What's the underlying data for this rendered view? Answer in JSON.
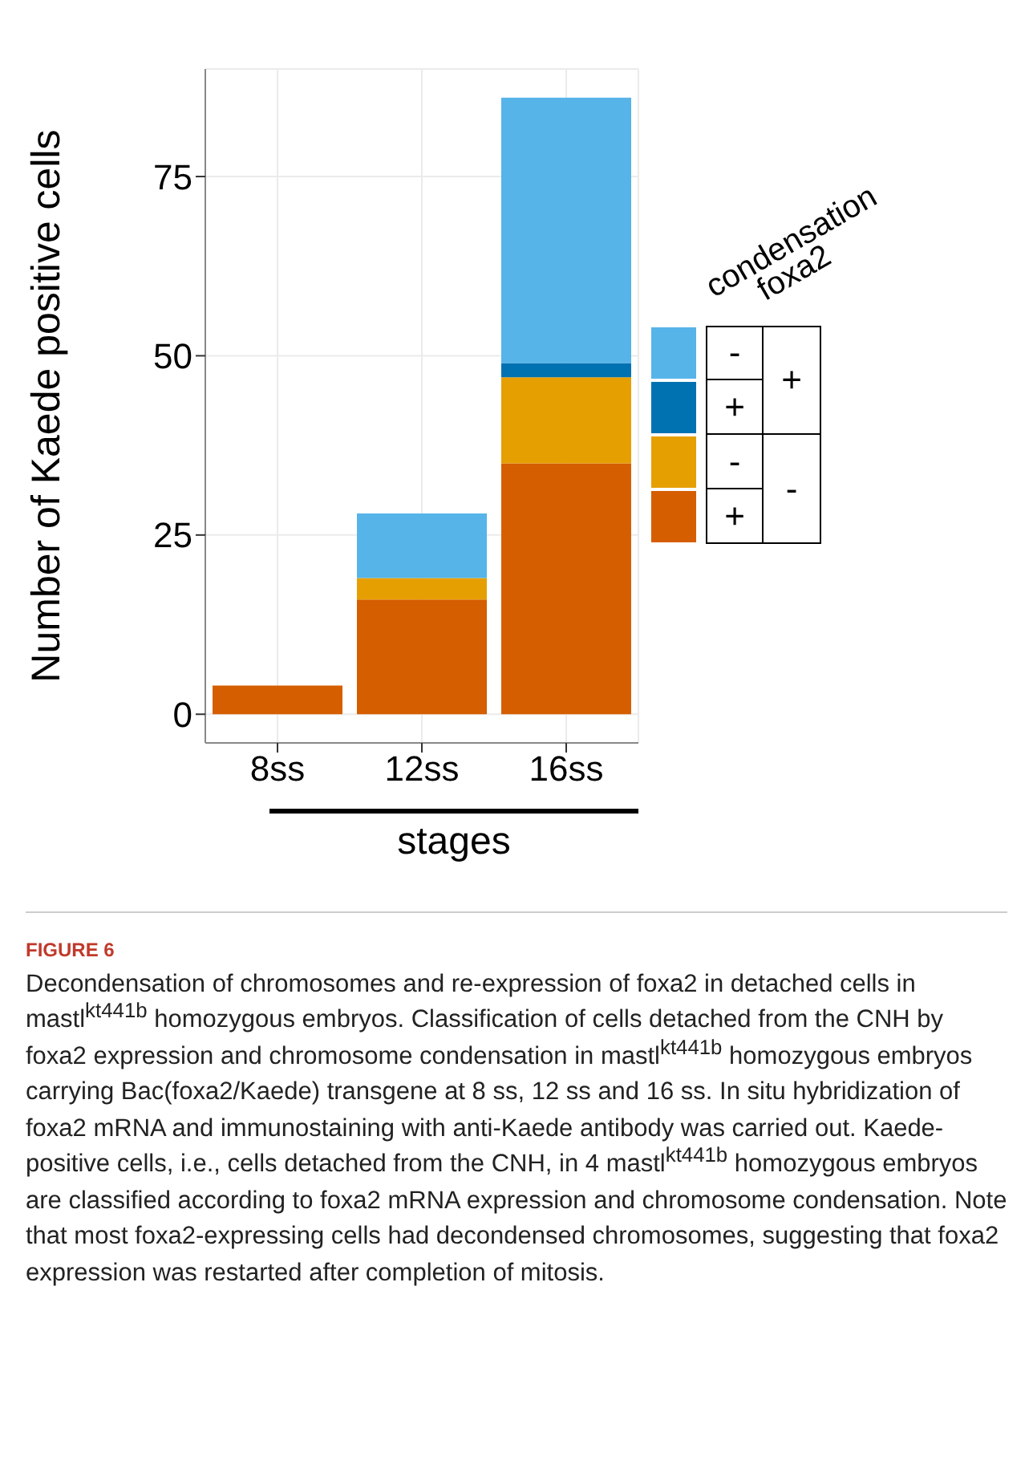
{
  "chart_data": {
    "type": "bar",
    "title": "FIGURE 6",
    "categories": [
      "8ss",
      "12ss",
      "16ss"
    ],
    "series": [
      {
        "name": "+",
        "color": "#d55e00",
        "values": [
          4,
          16,
          35
        ]
      },
      {
        "name": "-",
        "color": "#e69f00",
        "values": [
          0,
          3,
          12
        ]
      },
      {
        "name": "+",
        "color": "#0072b2",
        "values": [
          0,
          0,
          2
        ]
      },
      {
        "name": "-",
        "color": "#56b4e9",
        "values": [
          0,
          9,
          37
        ]
      }
    ],
    "stacked": true,
    "xlabel": "stages",
    "ylabel": "Number of Kaede positive cells",
    "legend_title": "condensation\nfoxa2",
    "ylim": [
      -4,
      90
    ],
    "yticks": [
      0,
      25,
      50,
      75
    ],
    "grid": true,
    "legend": "right",
    "annotations": [
      "Decondensation of chromosomes and re-expression of foxa2 in detached cells in mastl$^{kt441b}$ homozygous embryos. Classification of cells detached from the CNH by foxa2 expression and chromosome condensation in mastl$^{kt441b}$ homozygous embryos carrying Bac(foxa2/Kaede) transgene at 8 ss, 12 ss and 16 ss. In situ hybridization of foxa2 mRNA and immunostaining with anti-Kaede antibody was carried out. Kaede-positive cells, i.e., cells detached from the CNH, in 4 mastl$^{kt441b}$ homozygous embryos are classified according to foxa2 mRNA expression and chromosome condensation. Note that most foxa2-expressing cells had decondensed chromosomes, suggesting that foxa2 expression was restarted after completion of mitosis.",
      "+",
      "-"
    ]
  }
}
